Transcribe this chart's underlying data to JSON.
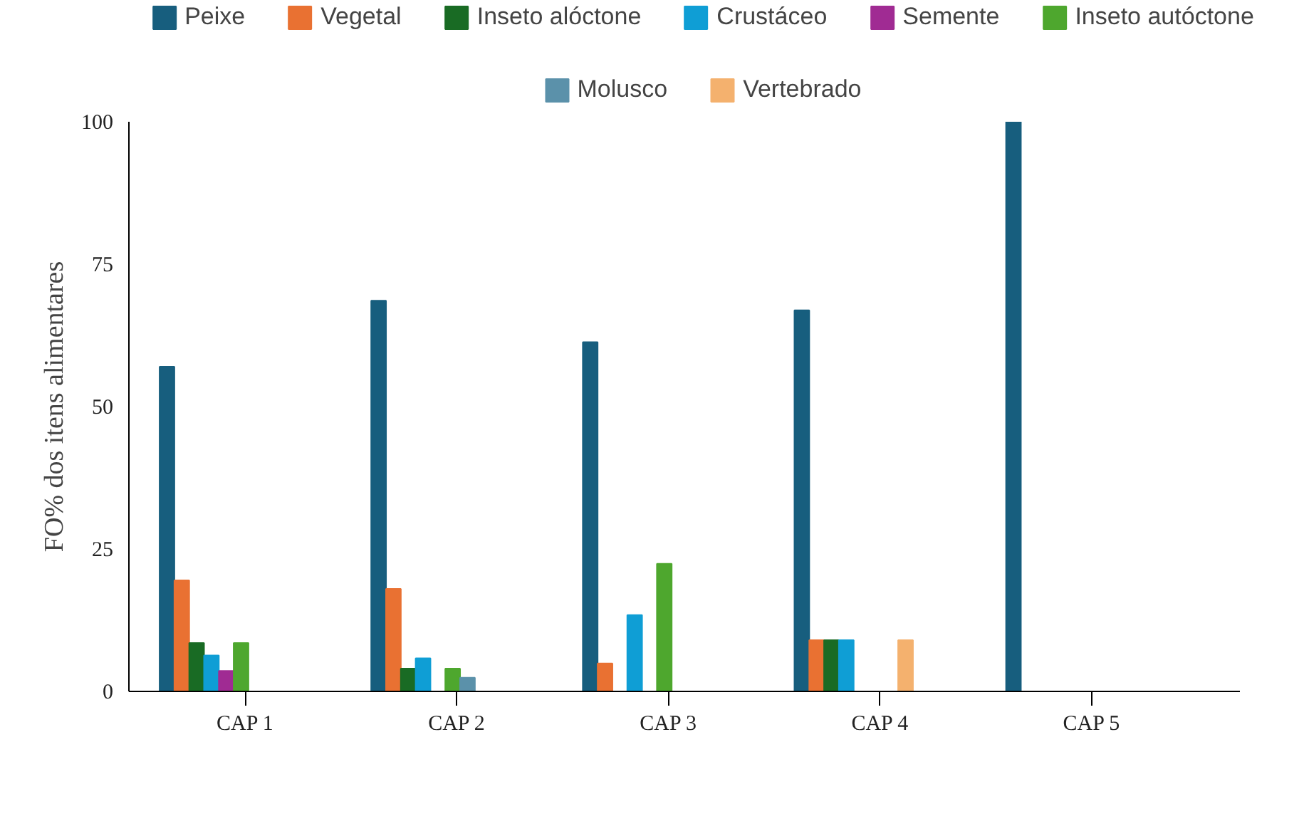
{
  "chart_data": {
    "type": "bar",
    "ylabel": "FO% dos itens alimentares",
    "categories": [
      "CAP 1",
      "CAP 2",
      "CAP 3",
      "CAP 4",
      "CAP 5"
    ],
    "ylim": [
      0,
      100
    ],
    "yticks": [
      0,
      25,
      50,
      75,
      100
    ],
    "grid": false,
    "legend": "top",
    "series": [
      {
        "name": "Peixe",
        "color": "#175e7e",
        "values": [
          57,
          68.6,
          61.3,
          66.9,
          100
        ]
      },
      {
        "name": "Vegetal",
        "color": "#e97132",
        "values": [
          19.5,
          18,
          4.9,
          9,
          0
        ]
      },
      {
        "name": "Inseto alóctone",
        "color": "#196b24",
        "values": [
          8.5,
          4,
          0,
          9,
          0
        ]
      },
      {
        "name": "Crustáceo",
        "color": "#0f9ed5",
        "values": [
          6.3,
          5.8,
          13.4,
          9,
          0
        ]
      },
      {
        "name": "Semente",
        "color": "#a02b93",
        "values": [
          3.6,
          0,
          0,
          0,
          0
        ]
      },
      {
        "name": "Inseto autóctone",
        "color": "#4ea72e",
        "values": [
          8.5,
          4,
          22.4,
          0,
          0
        ]
      },
      {
        "name": "Molusco",
        "color": "#5b91aa",
        "values": [
          0,
          2.4,
          0,
          0,
          0
        ]
      },
      {
        "name": "Vertebrado",
        "color": "#f4b16e",
        "values": [
          0,
          0,
          0,
          9,
          0
        ]
      }
    ]
  }
}
